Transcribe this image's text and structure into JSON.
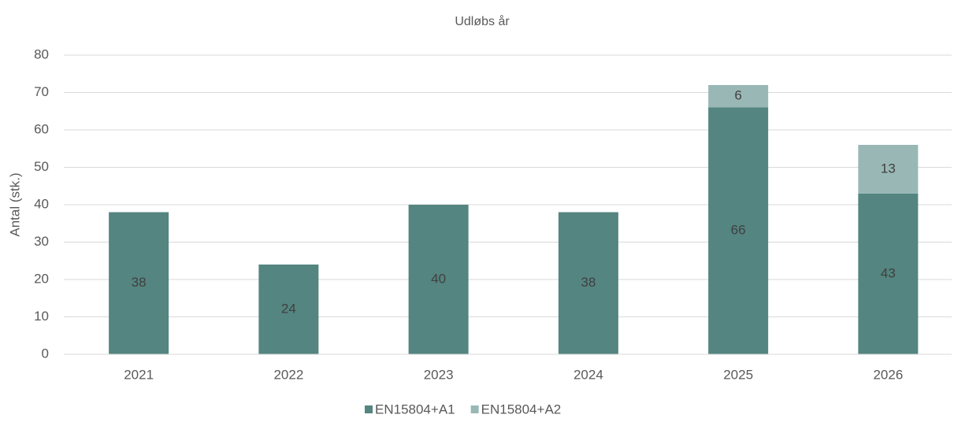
{
  "chart_data": {
    "type": "stacked_bar",
    "title": "Udløbs år",
    "y_label": "Antal (stk.)",
    "categories": [
      "2021",
      "2022",
      "2023",
      "2024",
      "2025",
      "2026"
    ],
    "series": [
      {
        "name": "EN15804+A1",
        "color": "#548580",
        "values": [
          38,
          24,
          40,
          38,
          66,
          43
        ]
      },
      {
        "name": "EN15804+A2",
        "color": "#99b8b5",
        "values": [
          null,
          null,
          null,
          null,
          6,
          13
        ]
      }
    ],
    "ylim": [
      0,
      80
    ],
    "yticks": [
      0,
      10,
      20,
      30,
      40,
      50,
      60,
      70,
      80
    ],
    "grid": true,
    "legend": "bottom"
  }
}
